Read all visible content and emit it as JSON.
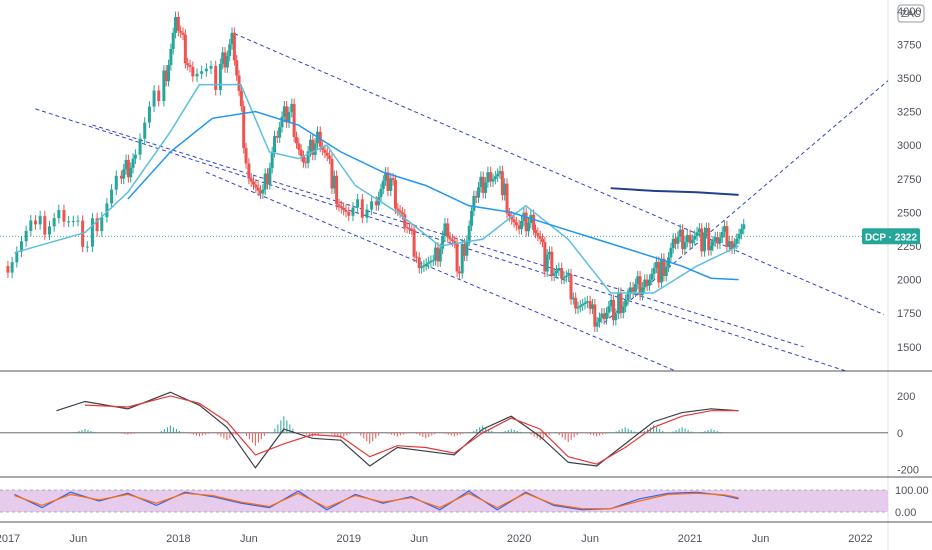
{
  "currency_label": "ZAC",
  "price_badge": {
    "text": "DCP · 2322",
    "value": 2322,
    "color": "#26a69a"
  },
  "x_axis_labels": [
    "2017",
    "Jun",
    "2018",
    "Jun",
    "2019",
    "Jun",
    "2020",
    "Jun",
    "2021",
    "Jun",
    "2022"
  ],
  "colors": {
    "up": "#26a69a",
    "down": "#ef5350",
    "ema_fast": "#5bc0de",
    "ema_slow": "#2196f3",
    "ema_long": "#1f3f8f",
    "channel": "#3344cc",
    "macd": "#3a3f4b",
    "signal": "#e53935",
    "stoch_k": "#2962ff",
    "stoch_d": "#ff6d00",
    "stoch_band": "#e1bee7"
  },
  "chart_data": [
    {
      "type": "candlestick",
      "title": "",
      "y_axis": {
        "ticks": [
          4000,
          3750,
          3500,
          3250,
          3000,
          2750,
          2500,
          2250,
          2000,
          1750,
          1500
        ],
        "range": [
          1320,
          4080
        ]
      },
      "x_axis": {
        "range": [
          "2016-12-15",
          "2022-03-01"
        ]
      },
      "last_price": 2322,
      "series": [
        {
          "name": "",
          "kind": "close_line",
          "x": [
            "2017-01",
            "2017-03",
            "2017-05",
            "2017-07",
            "2017-09",
            "2017-10",
            "2017-12",
            "2018-01",
            "2018-02",
            "2018-04",
            "2018-05",
            "2018-06",
            "2018-07",
            "2018-08",
            "2018-09",
            "2018-10",
            "2018-11",
            "2018-12",
            "2019-01",
            "2019-03",
            "2019-04",
            "2019-05",
            "2019-06",
            "2019-07",
            "2019-08",
            "2019-09",
            "2019-10",
            "2019-11",
            "2019-12",
            "2020-01",
            "2020-02",
            "2020-03",
            "2020-04",
            "2020-05",
            "2020-06",
            "2020-07",
            "2020-08",
            "2020-09",
            "2020-10",
            "2020-11",
            "2020-12",
            "2021-01",
            "2021-02",
            "2021-03",
            "2021-04"
          ],
          "y": [
            2100,
            2350,
            2500,
            2300,
            2700,
            2900,
            3400,
            3900,
            3600,
            3500,
            3800,
            2900,
            2550,
            3050,
            3300,
            2800,
            3100,
            2750,
            2450,
            2600,
            2750,
            2450,
            2200,
            2050,
            2400,
            2100,
            2550,
            2800,
            2700,
            2350,
            2500,
            2150,
            2050,
            1900,
            1750,
            1730,
            1800,
            1870,
            2000,
            2050,
            2250,
            2350,
            2300,
            2280,
            2322
          ]
        },
        {
          "name": "",
          "kind": "ema_fast",
          "x": [
            "2017-01",
            "2017-06",
            "2017-09",
            "2017-12",
            "2018-02",
            "2018-05",
            "2018-07",
            "2018-09",
            "2018-11",
            "2019-01",
            "2019-04",
            "2019-07",
            "2019-10",
            "2020-01",
            "2020-04",
            "2020-07",
            "2020-10",
            "2021-01",
            "2021-04"
          ],
          "y": [
            2200,
            2350,
            2650,
            3100,
            3450,
            3450,
            2950,
            2900,
            3000,
            2700,
            2500,
            2250,
            2300,
            2550,
            2300,
            1900,
            1900,
            2100,
            2250
          ]
        },
        {
          "name": "",
          "kind": "ema_slow",
          "x": [
            "2017-09",
            "2017-12",
            "2018-03",
            "2018-06",
            "2018-09",
            "2018-12",
            "2019-03",
            "2019-06",
            "2019-09",
            "2019-12",
            "2020-03",
            "2020-06",
            "2020-09",
            "2020-12",
            "2021-02",
            "2021-04"
          ],
          "y": [
            2600,
            2950,
            3200,
            3250,
            3150,
            2950,
            2800,
            2700,
            2550,
            2500,
            2400,
            2300,
            2200,
            2100,
            2010,
            2000
          ]
        },
        {
          "name": "",
          "kind": "ema_long",
          "x": [
            "2020-07",
            "2020-10",
            "2021-01",
            "2021-04"
          ],
          "y": [
            2680,
            2660,
            2650,
            2630
          ]
        }
      ]
    },
    {
      "type": "line",
      "title": "",
      "y_axis": {
        "ticks": [
          200,
          0,
          -200
        ],
        "range": [
          -240,
          330
        ]
      },
      "series": [
        {
          "name": "",
          "kind": "macd",
          "x": [
            "2017-04",
            "2017-06",
            "2017-09",
            "2017-12",
            "2018-02",
            "2018-04",
            "2018-06",
            "2018-08",
            "2018-10",
            "2018-12",
            "2019-02",
            "2019-04",
            "2019-06",
            "2019-08",
            "2019-10",
            "2019-12",
            "2020-02",
            "2020-04",
            "2020-06",
            "2020-08",
            "2020-10",
            "2020-12",
            "2021-02",
            "2021-04"
          ],
          "y": [
            120,
            170,
            130,
            220,
            150,
            30,
            -190,
            20,
            -30,
            -40,
            -180,
            -80,
            -100,
            -120,
            20,
            90,
            -20,
            -160,
            -180,
            -60,
            60,
            110,
            130,
            120
          ]
        },
        {
          "name": "",
          "kind": "signal",
          "x": [
            "2017-06",
            "2017-09",
            "2017-12",
            "2018-02",
            "2018-04",
            "2018-06",
            "2018-08",
            "2018-10",
            "2018-12",
            "2019-02",
            "2019-04",
            "2019-06",
            "2019-08",
            "2019-10",
            "2019-12",
            "2020-02",
            "2020-04",
            "2020-06",
            "2020-08",
            "2020-10",
            "2020-12",
            "2021-02",
            "2021-04"
          ],
          "y": [
            150,
            140,
            200,
            160,
            60,
            -120,
            -60,
            -10,
            -20,
            -130,
            -70,
            -80,
            -110,
            0,
            80,
            20,
            -130,
            -170,
            -80,
            30,
            90,
            120,
            120
          ]
        },
        {
          "name": "",
          "kind": "histogram",
          "x": [
            "2017-06",
            "2017-09",
            "2017-12",
            "2018-02",
            "2018-04",
            "2018-06",
            "2018-08",
            "2018-10",
            "2018-12",
            "2019-02",
            "2019-04",
            "2019-06",
            "2019-08",
            "2019-10",
            "2019-12",
            "2020-02",
            "2020-04",
            "2020-06",
            "2020-08",
            "2020-10",
            "2020-12",
            "2021-02",
            "2021-04"
          ],
          "y": [
            20,
            -10,
            40,
            -20,
            -40,
            -70,
            90,
            -20,
            -30,
            -60,
            -20,
            -30,
            -20,
            40,
            20,
            -40,
            -50,
            -20,
            30,
            40,
            30,
            20,
            0
          ]
        }
      ]
    },
    {
      "type": "line",
      "title": "",
      "y_axis": {
        "ticks": [
          100.0,
          0.0
        ],
        "labels": [
          "100.00",
          "0.00"
        ],
        "range": [
          0,
          100
        ]
      },
      "series": [
        {
          "name": "",
          "kind": "stoch_k",
          "x": [
            "2017-01",
            "2017-03",
            "2017-05",
            "2017-07",
            "2017-09",
            "2017-11",
            "2018-01",
            "2018-03",
            "2018-05",
            "2018-07",
            "2018-09",
            "2018-11",
            "2019-01",
            "2019-03",
            "2019-05",
            "2019-07",
            "2019-09",
            "2019-11",
            "2020-01",
            "2020-03",
            "2020-05",
            "2020-07",
            "2020-09",
            "2020-11",
            "2021-01",
            "2021-03",
            "2021-04"
          ],
          "y": [
            80,
            20,
            90,
            50,
            85,
            30,
            90,
            70,
            40,
            20,
            95,
            10,
            80,
            40,
            70,
            10,
            95,
            10,
            90,
            30,
            10,
            15,
            60,
            85,
            90,
            75,
            60
          ]
        },
        {
          "name": "",
          "kind": "stoch_d",
          "x": [
            "2017-01",
            "2017-03",
            "2017-05",
            "2017-07",
            "2017-09",
            "2017-11",
            "2018-01",
            "2018-03",
            "2018-05",
            "2018-07",
            "2018-09",
            "2018-11",
            "2019-01",
            "2019-03",
            "2019-05",
            "2019-07",
            "2019-09",
            "2019-11",
            "2020-01",
            "2020-03",
            "2020-05",
            "2020-07",
            "2020-09",
            "2020-11",
            "2021-01",
            "2021-03",
            "2021-04"
          ],
          "y": [
            75,
            30,
            80,
            55,
            80,
            40,
            85,
            75,
            45,
            25,
            85,
            20,
            75,
            45,
            65,
            20,
            85,
            20,
            85,
            35,
            15,
            15,
            50,
            80,
            85,
            78,
            65
          ]
        }
      ]
    }
  ]
}
